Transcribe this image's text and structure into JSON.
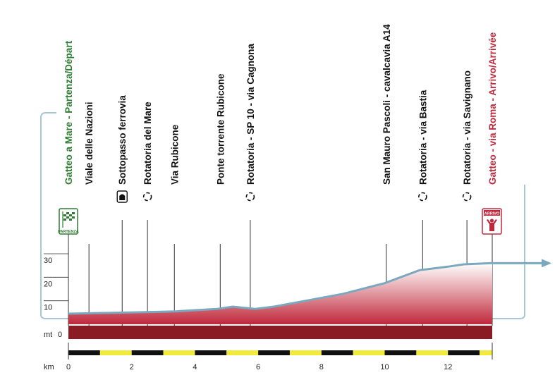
{
  "chart_data": {
    "type": "area",
    "unit_y": "mt",
    "unit_x": "km",
    "ylim": [
      0,
      30
    ],
    "xlim": [
      0,
      13.4
    ],
    "y_ticks": [
      0,
      10,
      20,
      30
    ],
    "x_ticks": [
      0,
      2,
      4,
      6,
      8,
      10,
      12
    ],
    "profile": [
      {
        "x": 0,
        "y": 4.5
      },
      {
        "x": 2,
        "y": 5
      },
      {
        "x": 3.4,
        "y": 5.5
      },
      {
        "x": 4.7,
        "y": 6.5
      },
      {
        "x": 5.2,
        "y": 7.5
      },
      {
        "x": 5.9,
        "y": 6.5
      },
      {
        "x": 6.5,
        "y": 7.5
      },
      {
        "x": 7.5,
        "y": 10
      },
      {
        "x": 8.7,
        "y": 13
      },
      {
        "x": 10.0,
        "y": 17.5
      },
      {
        "x": 11.1,
        "y": 23
      },
      {
        "x": 12.0,
        "y": 24.5
      },
      {
        "x": 12.5,
        "y": 25.5
      },
      {
        "x": 13.4,
        "y": 26
      }
    ],
    "waypoints": [
      {
        "km": 0.0,
        "label": "Gatteo a Mare - Partenza/Départ",
        "kind": "start"
      },
      {
        "km": 0.65,
        "label": "Viale delle Nazioni",
        "kind": "plain"
      },
      {
        "km": 1.7,
        "label": "Sottopasso ferrovia",
        "kind": "underpass"
      },
      {
        "km": 2.5,
        "label": "Rotatoria del Mare",
        "kind": "roundabout"
      },
      {
        "km": 3.35,
        "label": "Via Rubicone",
        "kind": "plain"
      },
      {
        "km": 4.8,
        "label": "Ponte torrente Rubicone",
        "kind": "plain"
      },
      {
        "km": 5.75,
        "label": "Rotatoria - SP 10 - via Cagnona",
        "kind": "roundabout"
      },
      {
        "km": 10.05,
        "label": "San Mauro Pascoli - cavalcavia A14",
        "kind": "plain"
      },
      {
        "km": 11.2,
        "label": "Rotatoria - via Bastia",
        "kind": "roundabout"
      },
      {
        "km": 12.6,
        "label": "Rotatoria - via Savignano",
        "kind": "roundabout"
      },
      {
        "km": 13.4,
        "label": "Gatteo - via Roma - Arrivo/Arrivée",
        "kind": "finish"
      }
    ],
    "colors": {
      "start_label": "#2e7d32",
      "finish_label": "#c0283b",
      "profile_line": "#7aa9bf",
      "fill_dark": "#c0283b",
      "base_band": "#8a1b24",
      "scale_yellow": "#f2ea3a",
      "scale_black": "#111111"
    }
  },
  "badges": {
    "start_text": "PARTENZA",
    "finish_text": "ARRIVO"
  }
}
